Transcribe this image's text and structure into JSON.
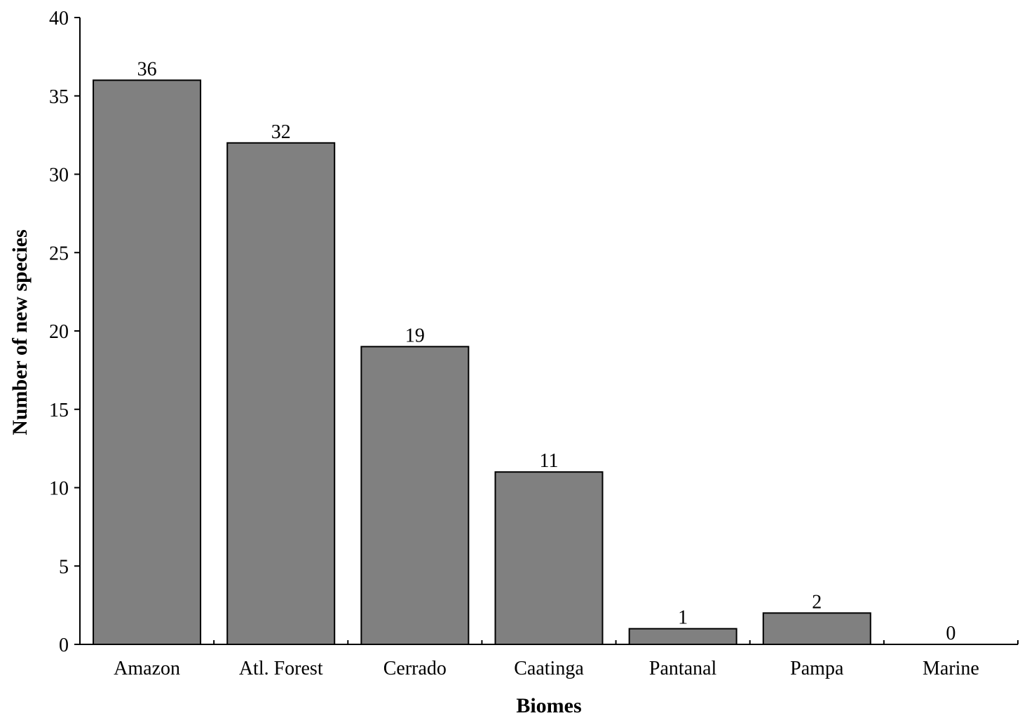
{
  "chart_data": {
    "type": "bar",
    "categories": [
      "Amazon",
      "Atl. Forest",
      "Cerrado",
      "Caatinga",
      "Pantanal",
      "Pampa",
      "Marine"
    ],
    "values": [
      36,
      32,
      19,
      11,
      1,
      2,
      0
    ],
    "data_labels": [
      "36",
      "32",
      "19",
      "11",
      "1",
      "2",
      "0"
    ],
    "title": "",
    "xlabel": "Biomes",
    "ylabel": "Number of new species",
    "ylim": [
      0,
      40
    ],
    "yticks": [
      0,
      5,
      10,
      15,
      20,
      25,
      30,
      35,
      40
    ],
    "grid": false,
    "legend": "none",
    "colors": {
      "bar_fill": "#808080",
      "bar_stroke": "#000000",
      "axis": "#000000"
    }
  }
}
